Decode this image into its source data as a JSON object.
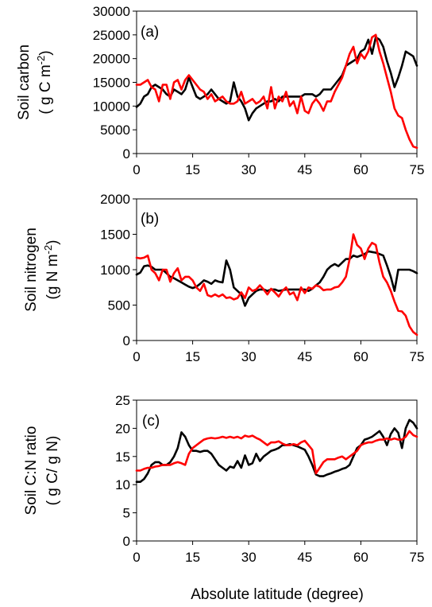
{
  "figure": {
    "xlabel": "Absolute latitude (degree)"
  },
  "chart_data": [
    {
      "type": "line",
      "panel_label": "(a)",
      "ylabel_line1": "Soil carbon",
      "ylabel_line2_prefix": "( g C m",
      "ylabel_line2_sup": "-2",
      "ylabel_line2_suffix": ")",
      "xlim": [
        0,
        75
      ],
      "ylim": [
        0,
        30000
      ],
      "xticks": [
        0,
        15,
        30,
        45,
        60,
        75
      ],
      "yticks": [
        0,
        5000,
        10000,
        15000,
        20000,
        25000,
        30000
      ],
      "series": [
        {
          "color": "#000000",
          "x": [
            0,
            1,
            2,
            3,
            4,
            5,
            6,
            7,
            8,
            9,
            10,
            11,
            12,
            13,
            14,
            15,
            16,
            17,
            18,
            19,
            20,
            21,
            22,
            23,
            24,
            25,
            26,
            27,
            28,
            29,
            30,
            31,
            32,
            33,
            34,
            35,
            36,
            37,
            38,
            39,
            40,
            41,
            42,
            43,
            44,
            45,
            46,
            47,
            48,
            49,
            50,
            51,
            52,
            53,
            54,
            55,
            56,
            57,
            58,
            59,
            60,
            61,
            62,
            63,
            64,
            65,
            66,
            67,
            68,
            69,
            70,
            71,
            72,
            73,
            74,
            75
          ],
          "y": [
            9800,
            10500,
            12000,
            12500,
            14000,
            14500,
            14000,
            13500,
            12500,
            12000,
            13500,
            13000,
            12500,
            13500,
            16000,
            14000,
            12000,
            11500,
            12000,
            12500,
            13500,
            12500,
            11500,
            11000,
            10500,
            11000,
            15000,
            12000,
            11000,
            9500,
            7000,
            8500,
            9500,
            10000,
            10500,
            11000,
            11000,
            11500,
            11000,
            12000,
            12000,
            12000,
            12000,
            12000,
            12000,
            12500,
            12500,
            12500,
            12000,
            12500,
            13500,
            13500,
            13500,
            14500,
            15500,
            16500,
            18500,
            19000,
            19500,
            20000,
            21500,
            22000,
            24000,
            21000,
            24500,
            24000,
            22500,
            19500,
            17000,
            14000,
            16000,
            18500,
            21500,
            21000,
            20500,
            18500
          ]
        },
        {
          "color": "#ff0000",
          "x": [
            0,
            1,
            2,
            3,
            4,
            5,
            6,
            7,
            8,
            9,
            10,
            11,
            12,
            13,
            14,
            15,
            16,
            17,
            18,
            19,
            20,
            21,
            22,
            23,
            24,
            25,
            26,
            27,
            28,
            29,
            30,
            31,
            32,
            33,
            34,
            35,
            36,
            37,
            38,
            39,
            40,
            41,
            42,
            43,
            44,
            45,
            46,
            47,
            48,
            49,
            50,
            51,
            52,
            53,
            54,
            55,
            56,
            57,
            58,
            59,
            60,
            61,
            62,
            63,
            64,
            65,
            66,
            67,
            68,
            69,
            70,
            71,
            72,
            73,
            74,
            75
          ],
          "y": [
            14500,
            14500,
            15000,
            15500,
            14000,
            13500,
            11000,
            14500,
            14500,
            11500,
            15000,
            15500,
            13500,
            15500,
            16500,
            15500,
            14500,
            13500,
            13000,
            11500,
            12500,
            11000,
            11500,
            12000,
            11000,
            10500,
            10500,
            11000,
            13000,
            10500,
            11000,
            11500,
            10500,
            11000,
            12000,
            9500,
            14000,
            9500,
            12000,
            11000,
            13000,
            10000,
            11000,
            8500,
            12000,
            9000,
            8500,
            10500,
            11500,
            10500,
            9000,
            11000,
            11000,
            13000,
            14500,
            16000,
            18500,
            21000,
            22500,
            19000,
            21000,
            20000,
            21500,
            24500,
            25000,
            21500,
            19000,
            16000,
            13000,
            9500,
            8000,
            7500,
            5000,
            3000,
            1500,
            1200
          ]
        }
      ]
    },
    {
      "type": "line",
      "panel_label": "(b)",
      "ylabel_line1": "Soil nitrogen",
      "ylabel_line2_prefix": "(g N m",
      "ylabel_line2_sup": "-2",
      "ylabel_line2_suffix": ")",
      "xlim": [
        0,
        75
      ],
      "ylim": [
        0,
        2000
      ],
      "xticks": [
        0,
        15,
        30,
        45,
        60,
        75
      ],
      "yticks": [
        0,
        500,
        1000,
        1500,
        2000
      ],
      "series": [
        {
          "color": "#000000",
          "x": [
            0,
            1,
            2,
            3,
            4,
            5,
            6,
            7,
            8,
            9,
            10,
            11,
            12,
            13,
            14,
            15,
            16,
            17,
            18,
            19,
            20,
            21,
            22,
            23,
            24,
            25,
            26,
            27,
            28,
            29,
            30,
            31,
            32,
            33,
            34,
            35,
            36,
            37,
            38,
            39,
            40,
            41,
            42,
            43,
            44,
            45,
            46,
            47,
            48,
            49,
            50,
            51,
            52,
            53,
            54,
            55,
            56,
            57,
            58,
            59,
            60,
            61,
            62,
            63,
            64,
            65,
            66,
            67,
            68,
            69,
            70,
            71,
            72,
            73,
            74,
            75
          ],
          "y": [
            930,
            960,
            1050,
            1060,
            1040,
            1000,
            1000,
            1000,
            950,
            900,
            880,
            850,
            820,
            790,
            760,
            740,
            760,
            800,
            850,
            830,
            800,
            850,
            830,
            820,
            1130,
            1000,
            750,
            700,
            650,
            490,
            600,
            650,
            700,
            720,
            720,
            700,
            720,
            720,
            700,
            710,
            720,
            720,
            720,
            720,
            720,
            720,
            700,
            730,
            780,
            820,
            900,
            1000,
            1050,
            1080,
            1050,
            1100,
            1150,
            1150,
            1200,
            1180,
            1200,
            1220,
            1260,
            1250,
            1240,
            1220,
            1200,
            1060,
            900,
            700,
            1000,
            1000,
            1000,
            1000,
            980,
            950
          ]
        },
        {
          "color": "#ff0000",
          "x": [
            0,
            1,
            2,
            3,
            4,
            5,
            6,
            7,
            8,
            9,
            10,
            11,
            12,
            13,
            14,
            15,
            16,
            17,
            18,
            19,
            20,
            21,
            22,
            23,
            24,
            25,
            26,
            27,
            28,
            29,
            30,
            31,
            32,
            33,
            34,
            35,
            36,
            37,
            38,
            39,
            40,
            41,
            42,
            43,
            44,
            45,
            46,
            47,
            48,
            49,
            50,
            51,
            52,
            53,
            54,
            55,
            56,
            57,
            58,
            59,
            60,
            61,
            62,
            63,
            64,
            65,
            66,
            67,
            68,
            69,
            70,
            71,
            72,
            73,
            74,
            75
          ],
          "y": [
            1170,
            1160,
            1170,
            1200,
            1000,
            950,
            850,
            1000,
            1000,
            830,
            950,
            1020,
            850,
            900,
            900,
            850,
            750,
            700,
            800,
            640,
            620,
            650,
            620,
            650,
            600,
            610,
            580,
            600,
            680,
            600,
            750,
            700,
            720,
            780,
            720,
            650,
            730,
            680,
            620,
            700,
            750,
            650,
            680,
            570,
            750,
            670,
            750,
            730,
            780,
            760,
            710,
            720,
            720,
            750,
            760,
            820,
            900,
            1150,
            1500,
            1350,
            1300,
            1150,
            1300,
            1380,
            1350,
            1100,
            900,
            820,
            700,
            550,
            420,
            410,
            350,
            200,
            120,
            80
          ]
        }
      ]
    },
    {
      "type": "line",
      "panel_label": "(c)",
      "ylabel_line1": "Soil C:N ratio",
      "ylabel_line2_prefix": "( g C/ g N)",
      "ylabel_line2_sup": "",
      "ylabel_line2_suffix": "",
      "xlim": [
        0,
        75
      ],
      "ylim": [
        0,
        25
      ],
      "xticks": [
        0,
        15,
        30,
        45,
        60,
        75
      ],
      "yticks": [
        0,
        5,
        10,
        15,
        20,
        25
      ],
      "series": [
        {
          "color": "#000000",
          "x": [
            0,
            1,
            2,
            3,
            4,
            5,
            6,
            7,
            8,
            9,
            10,
            11,
            12,
            13,
            14,
            15,
            16,
            17,
            18,
            19,
            20,
            21,
            22,
            23,
            24,
            25,
            26,
            27,
            28,
            29,
            30,
            31,
            32,
            33,
            34,
            35,
            36,
            37,
            38,
            39,
            40,
            41,
            42,
            43,
            44,
            45,
            46,
            47,
            48,
            49,
            50,
            51,
            52,
            53,
            54,
            55,
            56,
            57,
            58,
            59,
            60,
            61,
            62,
            63,
            64,
            65,
            66,
            67,
            68,
            69,
            70,
            71,
            72,
            73,
            74,
            75
          ],
          "y": [
            10.5,
            10.5,
            11,
            12,
            13.5,
            14,
            14,
            13.5,
            13.5,
            14,
            15,
            16.5,
            19.3,
            18.5,
            17,
            16,
            16,
            15.8,
            16,
            16,
            15.5,
            14.5,
            13.5,
            13,
            12.5,
            13.2,
            13,
            14.2,
            13,
            15.2,
            13.5,
            13.8,
            15.5,
            14.2,
            15,
            15.5,
            16,
            16.2,
            16.5,
            17,
            17,
            17.2,
            17,
            16.8,
            16.5,
            16.2,
            15,
            13.5,
            11.8,
            11.5,
            11.5,
            11.8,
            12,
            12.3,
            12.5,
            12.8,
            13,
            13.5,
            15,
            16.5,
            17,
            18,
            18.2,
            18.5,
            19,
            19.5,
            18.5,
            17,
            19,
            20,
            19.2,
            16.5,
            20,
            21.5,
            21,
            20
          ]
        },
        {
          "color": "#ff0000",
          "x": [
            0,
            1,
            2,
            3,
            4,
            5,
            6,
            7,
            8,
            9,
            10,
            11,
            12,
            13,
            14,
            15,
            16,
            17,
            18,
            19,
            20,
            21,
            22,
            23,
            24,
            25,
            26,
            27,
            28,
            29,
            30,
            31,
            32,
            33,
            34,
            35,
            36,
            37,
            38,
            39,
            40,
            41,
            42,
            43,
            44,
            45,
            46,
            47,
            48,
            49,
            50,
            51,
            52,
            53,
            54,
            55,
            56,
            57,
            58,
            59,
            60,
            61,
            62,
            63,
            64,
            65,
            66,
            67,
            68,
            69,
            70,
            71,
            72,
            73,
            74,
            75
          ],
          "y": [
            12.5,
            12.5,
            12.8,
            13,
            13,
            13.2,
            13.3,
            13.5,
            13.5,
            13.5,
            13.8,
            14,
            13.8,
            13.5,
            15.5,
            16.5,
            17,
            17.5,
            18,
            18.2,
            18.3,
            18.2,
            18.3,
            18.5,
            18.3,
            18.5,
            18.3,
            18.5,
            18.2,
            18.7,
            18.5,
            18.7,
            18.3,
            18,
            17.5,
            17,
            17.5,
            17.5,
            17.7,
            17.3,
            17,
            17,
            17.2,
            17,
            17.5,
            17.8,
            17,
            16.2,
            12,
            13,
            14,
            14.5,
            14.5,
            14.5,
            14.8,
            15,
            14.5,
            15,
            15.5,
            16,
            17,
            17.3,
            17.5,
            17.5,
            17.8,
            18,
            18,
            18.2,
            18,
            18.2,
            18,
            18,
            18.5,
            19.5,
            18.8,
            18.5
          ]
        }
      ]
    }
  ]
}
